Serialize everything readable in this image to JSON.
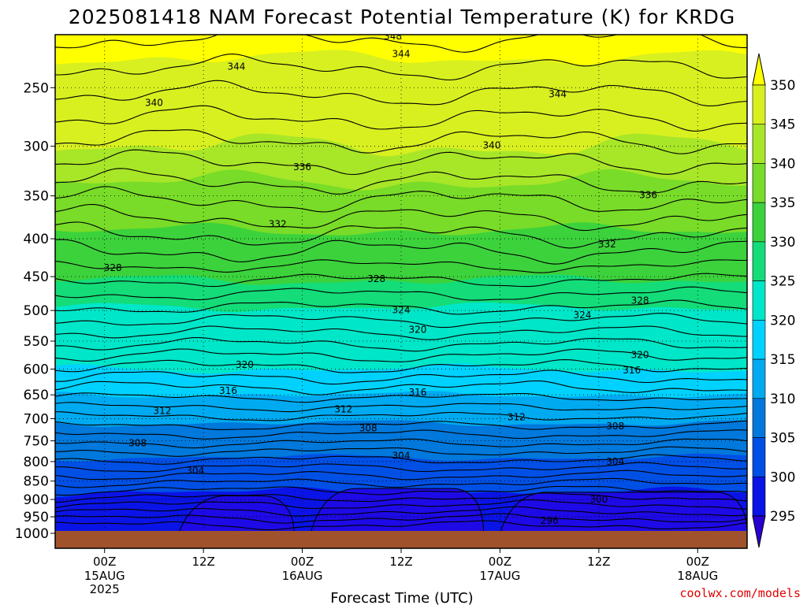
{
  "chart_data": {
    "type": "contour",
    "title": "2025081418 NAM Forecast Potential Temperature (K) for KRDG",
    "xlabel": "Forecast Time (UTC)",
    "ylabel": "",
    "credit": "coolwx.com/models",
    "y_pressure_ticks": [
      250,
      300,
      350,
      400,
      450,
      500,
      550,
      600,
      650,
      700,
      750,
      800,
      850,
      900,
      950,
      1000
    ],
    "x_ticks": [
      {
        "label": "00Z",
        "sub": "15AUG",
        "sub2": "2025",
        "hour": 6
      },
      {
        "label": "12Z",
        "sub": "",
        "sub2": "",
        "hour": 18
      },
      {
        "label": "00Z",
        "sub": "16AUG",
        "sub2": "",
        "hour": 30
      },
      {
        "label": "12Z",
        "sub": "",
        "sub2": "",
        "hour": 42
      },
      {
        "label": "00Z",
        "sub": "17AUG",
        "sub2": "",
        "hour": 54
      },
      {
        "label": "12Z",
        "sub": "",
        "sub2": "",
        "hour": 66
      },
      {
        "label": "00Z",
        "sub": "18AUG",
        "sub2": "",
        "hour": 78
      }
    ],
    "x_range_hours": [
      0,
      84
    ],
    "colorbar": {
      "labels": [
        "350",
        "345",
        "340",
        "335",
        "330",
        "325",
        "320",
        "315",
        "310",
        "305",
        "300",
        "295"
      ],
      "colors": [
        "#ffff00",
        "#d8f020",
        "#a8e628",
        "#78dc28",
        "#3cd23c",
        "#14dc78",
        "#00e6c8",
        "#00d2ff",
        "#00aaf0",
        "#0078dc",
        "#0050e6",
        "#0a14e6",
        "#2800d2"
      ]
    },
    "contour_labels": [
      {
        "text": "348",
        "h": 41,
        "p": 213
      },
      {
        "text": "344",
        "h": 22,
        "p": 234
      },
      {
        "text": "344",
        "h": 42,
        "p": 225
      },
      {
        "text": "344",
        "h": 61,
        "p": 255
      },
      {
        "text": "340",
        "h": 12,
        "p": 262
      },
      {
        "text": "340",
        "h": 53,
        "p": 299
      },
      {
        "text": "336",
        "h": 30,
        "p": 320
      },
      {
        "text": "336",
        "h": 72,
        "p": 349
      },
      {
        "text": "332",
        "h": 27,
        "p": 382
      },
      {
        "text": "332",
        "h": 67,
        "p": 407
      },
      {
        "text": "328",
        "h": 7,
        "p": 438
      },
      {
        "text": "328",
        "h": 39,
        "p": 453
      },
      {
        "text": "328",
        "h": 71,
        "p": 485
      },
      {
        "text": "324",
        "h": 42,
        "p": 499
      },
      {
        "text": "324",
        "h": 64,
        "p": 507
      },
      {
        "text": "320",
        "h": 44,
        "p": 531
      },
      {
        "text": "320",
        "h": 71,
        "p": 574
      },
      {
        "text": "320",
        "h": 23,
        "p": 592
      },
      {
        "text": "316",
        "h": 70,
        "p": 602
      },
      {
        "text": "316",
        "h": 21,
        "p": 642
      },
      {
        "text": "316",
        "h": 44,
        "p": 645
      },
      {
        "text": "312",
        "h": 13,
        "p": 683
      },
      {
        "text": "312",
        "h": 35,
        "p": 680
      },
      {
        "text": "312",
        "h": 56,
        "p": 697
      },
      {
        "text": "308",
        "h": 38,
        "p": 721
      },
      {
        "text": "308",
        "h": 68,
        "p": 717
      },
      {
        "text": "308",
        "h": 10,
        "p": 755
      },
      {
        "text": "304",
        "h": 42,
        "p": 786
      },
      {
        "text": "304",
        "h": 68,
        "p": 800
      },
      {
        "text": "304",
        "h": 17,
        "p": 823
      },
      {
        "text": "300",
        "h": 66,
        "p": 900
      },
      {
        "text": "296",
        "h": 60,
        "p": 962
      }
    ]
  }
}
